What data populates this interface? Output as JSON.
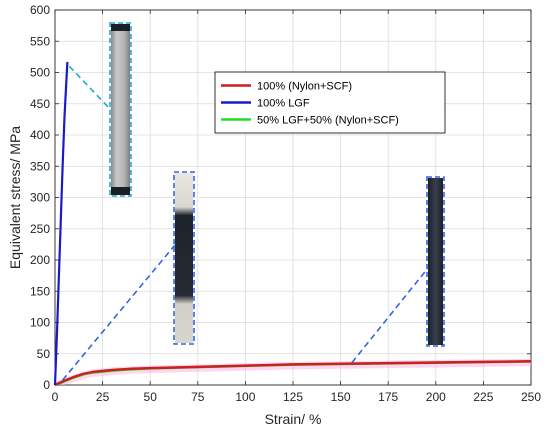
{
  "chart_data": {
    "type": "line",
    "title": "",
    "xlabel": "Strain/ %",
    "ylabel": "Equivalent stress/ MPa",
    "xlim": [
      0,
      250
    ],
    "ylim": [
      0,
      600
    ],
    "xticks": [
      0,
      25,
      50,
      75,
      100,
      125,
      150,
      175,
      200,
      225,
      250
    ],
    "yticks": [
      0,
      50,
      100,
      150,
      200,
      250,
      300,
      350,
      400,
      450,
      500,
      550,
      600
    ],
    "grid": true,
    "legend_position": "top-right",
    "series": [
      {
        "name": "100% (Nylon+SCF)",
        "color": "#cc1f1f",
        "x": [
          0,
          2,
          5,
          10,
          15,
          20,
          30,
          40,
          50,
          75,
          100,
          125,
          150,
          175,
          200,
          225,
          250
        ],
        "y": [
          0,
          3,
          7,
          13,
          18,
          21,
          24,
          26,
          27,
          29,
          31,
          33,
          34,
          35,
          36,
          37,
          38
        ]
      },
      {
        "name": "100% LGF",
        "color": "#1a1ac8",
        "x": [
          0,
          1,
          2,
          3,
          4,
          5,
          6.5
        ],
        "y": [
          0,
          80,
          170,
          260,
          350,
          430,
          517
        ]
      },
      {
        "name": "50% LGF+50% (Nylon+SCF)",
        "color": "#22dd22",
        "x": [
          0,
          2,
          5,
          10,
          15,
          20,
          30,
          40,
          50,
          75,
          100,
          125,
          150,
          175,
          200,
          225,
          250
        ],
        "y": [
          0,
          2,
          6,
          12,
          17,
          20,
          23,
          25,
          26.5,
          28.5,
          30.5,
          32.5,
          33.5,
          34.5,
          35.5,
          36.5,
          37.5
        ]
      }
    ],
    "insets": [
      {
        "name": "specimen-lgf",
        "color": "#22aacc"
      },
      {
        "name": "specimen-blend",
        "color": "#3366dd"
      },
      {
        "name": "specimen-nylon-scf",
        "color": "#3366dd"
      }
    ]
  }
}
